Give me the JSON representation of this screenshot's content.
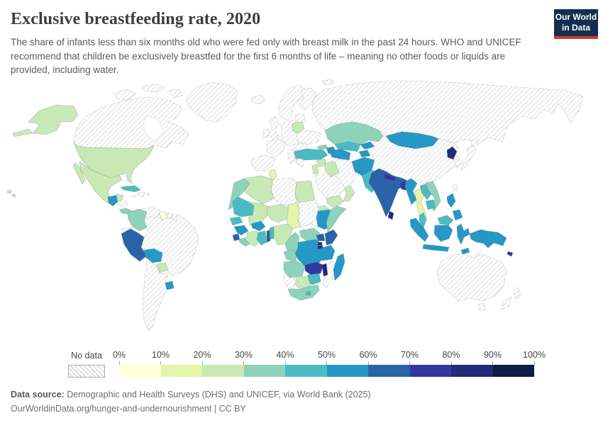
{
  "header": {
    "title": "Exclusive breastfeeding rate, 2020",
    "subtitle": "The share of infants less than six months old who were fed only with breast milk in the past 24 hours. WHO and UNICEF recommend that children be exclusively breastfed for the first 6 months of life – meaning no other foods or liquids are provided, including water.",
    "logo": {
      "line1": "Our World",
      "line2": "in Data",
      "bg": "#132f4f",
      "accent": "#d7332b"
    }
  },
  "chart_data": {
    "type": "choropleth",
    "title": "Exclusive breastfeeding rate, 2020",
    "unit": "%",
    "legend": {
      "no_data_label": "No data",
      "tick_labels": [
        "0%",
        "10%",
        "20%",
        "30%",
        "40%",
        "50%",
        "60%",
        "70%",
        "80%",
        "90%",
        "100%"
      ],
      "bin_edges": [
        0,
        10,
        20,
        30,
        40,
        50,
        60,
        70,
        80,
        90,
        100
      ],
      "bin_colors": [
        "#ffffd9",
        "#e4f4ab",
        "#c8e9b5",
        "#8ed2ba",
        "#4cbac2",
        "#2598c5",
        "#2a63a9",
        "#32399e",
        "#232a78",
        "#0e1d47"
      ],
      "no_data_pattern": "diagonal-hatch"
    },
    "regions": {
      "united-states": 25,
      "mexico": 28,
      "guatemala": 53,
      "panama": 32,
      "cuba": 41,
      "colombia": 36,
      "guyana": 6,
      "peru": 66,
      "bolivia": 55,
      "paraguay": 28,
      "uruguay": 57,
      "belarus": 27,
      "albania": 37,
      "morocco": 35,
      "algeria": 25,
      "tunisia": 13,
      "egypt": 27,
      "mauritania": 41,
      "mali": 26,
      "niger": 23,
      "chad": 16,
      "eritrea": 25,
      "ethiopia": 58,
      "somalia": 34,
      "senegal": 42,
      "guinea": 53,
      "sierra-leone": 62,
      "liberia": 34,
      "ivory-coast": 23,
      "burkina-faso": 56,
      "ghana": 43,
      "togo": 64,
      "benin": 42,
      "nigeria": 29,
      "cameroon": 38,
      "central-african-republic": 34,
      "congo": 33,
      "democratic-republic-of-congo": 55,
      "uganda": 66,
      "kenya": 61,
      "rwanda": 87,
      "burundi": 85,
      "tanzania": 58,
      "angola": 37,
      "zambia": 72,
      "malawi": 84,
      "zimbabwe": 42,
      "botswana": 25,
      "south-africa": 32,
      "lesotho": 45,
      "madagascar": 51,
      "turkey": 41,
      "georgia": 36,
      "azerbaijan": 55,
      "syria": 29,
      "jordan": 24,
      "iraq": 26,
      "yemen": 25,
      "oman": 23,
      "turkmenistan": 57,
      "uzbekistan": 43,
      "kazakhstan": 38,
      "kyrgyzstan": 55,
      "tajikistan": 58,
      "afghanistan": 57,
      "pakistan": 48,
      "india": 61,
      "nepal": 72,
      "bangladesh": 72,
      "sri-lanka": 85,
      "mongolia": 55,
      "north-korea": 85,
      "myanmar": 52,
      "thailand": 14,
      "laos": 44,
      "vietnam": 34,
      "cambodia": 45,
      "malaysia": 40,
      "indonesia": 52,
      "philippines": 55,
      "papua-new-guinea": 56,
      "timor": 52,
      "solomon-islands": 76
    }
  },
  "footer": {
    "datasource_label": "Data source:",
    "datasource_text": "Demographic and Health Surveys (DHS) and UNICEF, via World Bank (2025)",
    "link_text": "OurWorldinData.org/hunger-and-undernourishment | CC BY"
  }
}
